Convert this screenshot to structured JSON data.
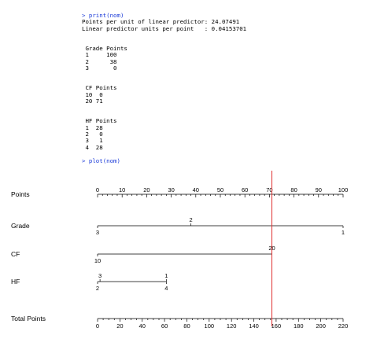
{
  "console": {
    "lines": [
      {
        "text": "> print(nom)",
        "type": "cmd"
      },
      {
        "text": "Points per unit of linear predictor: 24.07491",
        "type": "out"
      },
      {
        "text": "Linear predictor units per point   : 0.04153701",
        "type": "out"
      },
      {
        "text": "",
        "type": "gap"
      },
      {
        "text": "",
        "type": "gap"
      },
      {
        "text": " Grade Points",
        "type": "out"
      },
      {
        "text": " 1     100",
        "type": "out"
      },
      {
        "text": " 2      38",
        "type": "out"
      },
      {
        "text": " 3       0",
        "type": "out"
      },
      {
        "text": "",
        "type": "gap"
      },
      {
        "text": "",
        "type": "gap"
      },
      {
        "text": " CF Points",
        "type": "out"
      },
      {
        "text": " 10  0",
        "type": "out"
      },
      {
        "text": " 20 71",
        "type": "out"
      },
      {
        "text": "",
        "type": "gap"
      },
      {
        "text": "",
        "type": "gap"
      },
      {
        "text": " HF Points",
        "type": "out"
      },
      {
        "text": " 1  28",
        "type": "out"
      },
      {
        "text": " 2   0",
        "type": "out"
      },
      {
        "text": " 3   1",
        "type": "out"
      },
      {
        "text": " 4  28",
        "type": "out"
      },
      {
        "text": "",
        "type": "gap"
      },
      {
        "text": "> plot(nom)",
        "type": "cmd"
      }
    ]
  },
  "chart_data": {
    "type": "nomogram",
    "marker": {
      "points": 71,
      "color": "#e03030"
    },
    "rows": [
      {
        "label": "Points",
        "axis": "top",
        "range": [
          0,
          100
        ],
        "major_ticks": [
          0,
          10,
          20,
          30,
          40,
          50,
          60,
          70,
          80,
          90,
          100
        ],
        "minor_step": 2
      },
      {
        "label": "Grade",
        "kind": "factor",
        "levels": [
          {
            "label": "3",
            "points": 0,
            "side": "below"
          },
          {
            "label": "2",
            "points": 38,
            "side": "above"
          },
          {
            "label": "1",
            "points": 100,
            "side": "below"
          }
        ]
      },
      {
        "label": "CF",
        "kind": "factor",
        "levels": [
          {
            "label": "10",
            "points": 0,
            "side": "below"
          },
          {
            "label": "20",
            "points": 71,
            "side": "above"
          }
        ]
      },
      {
        "label": "HF",
        "kind": "factor",
        "levels": [
          {
            "label": "3",
            "points": 1,
            "side": "above"
          },
          {
            "label": "1",
            "points": 28,
            "side": "above"
          },
          {
            "label": "2",
            "points": 0,
            "side": "below"
          },
          {
            "label": "4",
            "points": 28,
            "side": "below"
          }
        ]
      },
      {
        "label": "Total Points",
        "axis": "bottom",
        "range": [
          0,
          220
        ],
        "major_ticks": [
          0,
          20,
          40,
          60,
          80,
          100,
          120,
          140,
          160,
          180,
          200,
          220
        ],
        "minor_step": 5
      }
    ]
  }
}
